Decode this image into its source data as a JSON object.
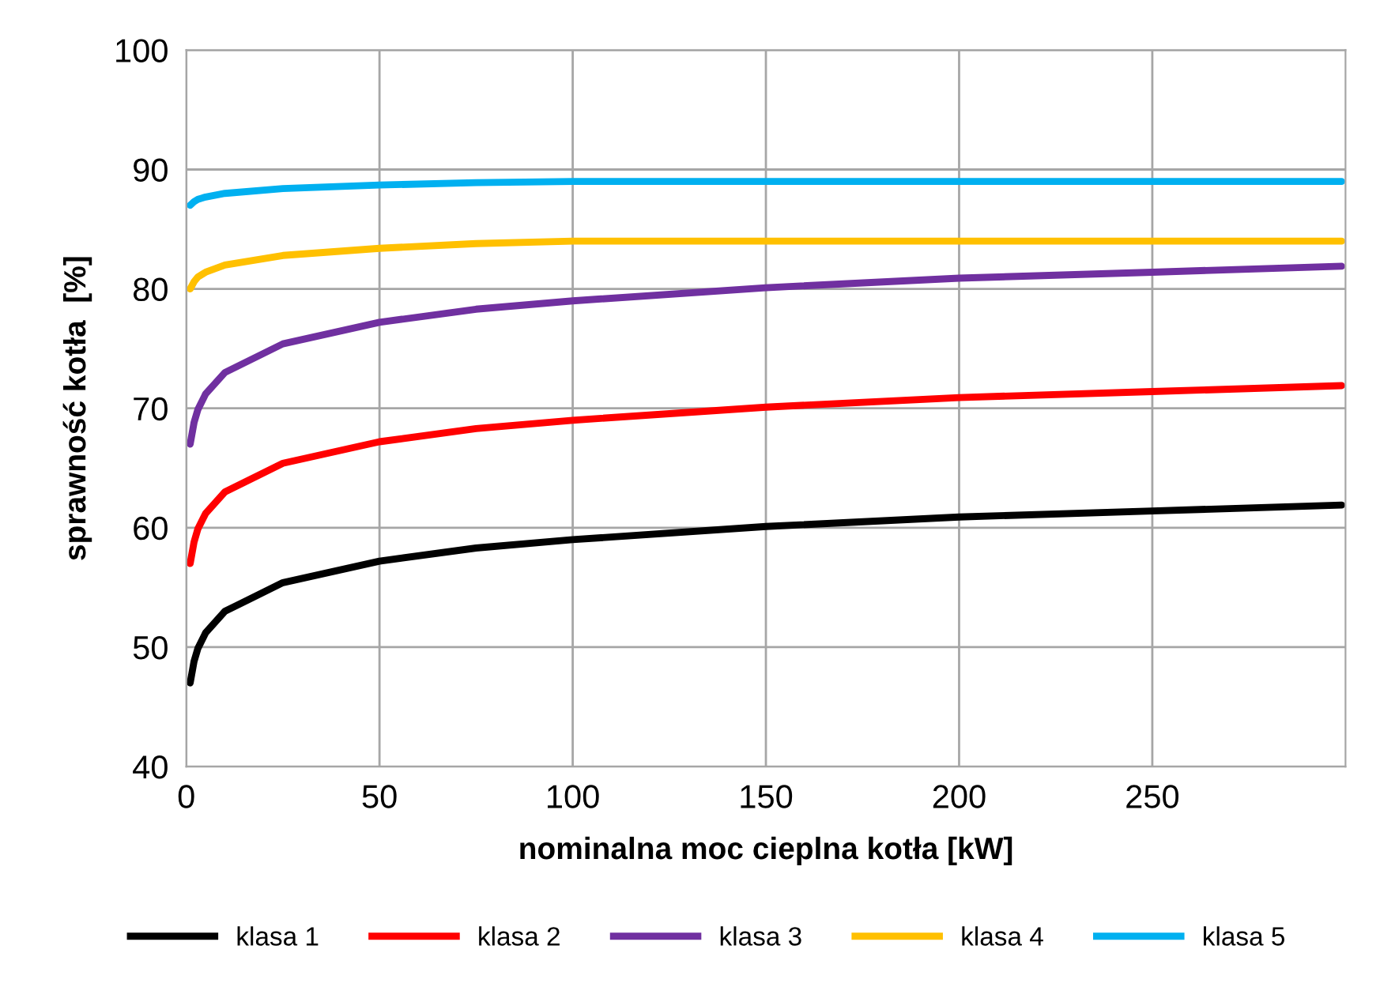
{
  "chart_data": {
    "type": "line",
    "xlabel": "nominalna moc cieplna kotła [kW]",
    "ylabel": "sprawność kotła  [%]",
    "x": [
      1,
      2,
      3,
      5,
      10,
      25,
      50,
      75,
      100,
      150,
      200,
      250,
      299
    ],
    "series": [
      {
        "name": "klasa 1",
        "color": "#000000",
        "values": [
          47,
          48.8,
          49.9,
          51.2,
          53,
          55.4,
          57.2,
          58.3,
          59,
          60.1,
          60.9,
          61.4,
          61.9
        ]
      },
      {
        "name": "klasa 2",
        "color": "#ff0000",
        "values": [
          57,
          58.8,
          59.9,
          61.2,
          63,
          65.4,
          67.2,
          68.3,
          69,
          70.1,
          70.9,
          71.4,
          71.9
        ]
      },
      {
        "name": "klasa 3",
        "color": "#7030a0",
        "values": [
          67,
          68.8,
          69.9,
          71.2,
          73,
          75.4,
          77.2,
          78.3,
          79,
          80.1,
          80.9,
          81.4,
          81.9
        ]
      },
      {
        "name": "klasa 4",
        "color": "#ffc000",
        "values": [
          80,
          80.6,
          81,
          81.4,
          82,
          82.8,
          83.4,
          83.8,
          84,
          84,
          84,
          84,
          84
        ]
      },
      {
        "name": "klasa 5",
        "color": "#00b0f0",
        "values": [
          87,
          87.3,
          87.5,
          87.7,
          88,
          88.4,
          88.7,
          88.9,
          89,
          89,
          89,
          89,
          89
        ]
      }
    ],
    "xlim": [
      0,
      300
    ],
    "xticks": [
      0,
      50,
      100,
      150,
      200,
      250
    ],
    "ylim": [
      40,
      100
    ],
    "yticks": [
      40,
      50,
      60,
      70,
      80,
      90,
      100
    ],
    "grid": true,
    "legend": "bottom",
    "marker": "none",
    "line_style": "solid"
  }
}
